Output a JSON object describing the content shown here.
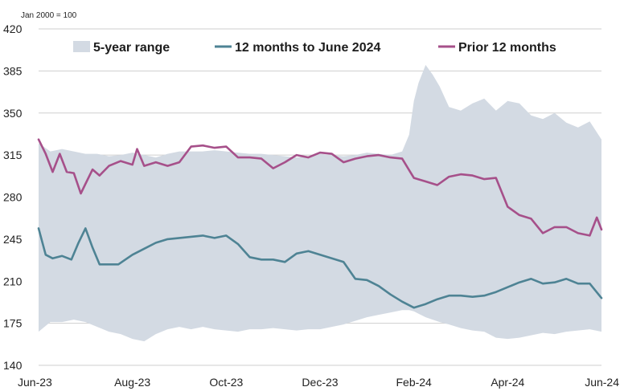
{
  "chart_data": {
    "type": "line",
    "unit_label": "Jan 2000 = 100",
    "ylim": [
      140,
      420
    ],
    "yticks": [
      140,
      175,
      210,
      245,
      280,
      315,
      350,
      385,
      420
    ],
    "xlim": [
      0,
      12
    ],
    "xticks": [
      {
        "x": 0,
        "label": "Jun-23"
      },
      {
        "x": 2,
        "label": "Aug-23"
      },
      {
        "x": 4,
        "label": "Oct-23"
      },
      {
        "x": 6,
        "label": "Dec-23"
      },
      {
        "x": 8,
        "label": "Feb-24"
      },
      {
        "x": 10,
        "label": "Apr-24"
      },
      {
        "x": 12,
        "label": "Jun-24"
      }
    ],
    "grid": "horizontal",
    "legend_position": "top",
    "band": {
      "name": "5-year range",
      "color": "#d3dae3",
      "x": [
        0.0,
        0.25,
        0.5,
        0.75,
        1.0,
        1.25,
        1.5,
        1.75,
        2.0,
        2.25,
        2.5,
        2.75,
        3.0,
        3.25,
        3.5,
        3.75,
        4.0,
        4.25,
        4.5,
        4.75,
        5.0,
        5.25,
        5.5,
        5.75,
        6.0,
        6.25,
        6.5,
        6.75,
        7.0,
        7.25,
        7.5,
        7.75,
        7.9,
        8.0,
        8.1,
        8.25,
        8.4,
        8.55,
        8.75,
        9.0,
        9.25,
        9.5,
        9.75,
        10.0,
        10.25,
        10.5,
        10.75,
        11.0,
        11.25,
        11.5,
        11.75,
        12.0
      ],
      "upper": [
        325,
        318,
        320,
        318,
        316,
        316,
        314,
        315,
        317,
        315,
        313,
        316,
        318,
        318,
        318,
        319,
        318,
        317,
        316,
        316,
        315,
        314,
        313,
        314,
        316,
        315,
        314,
        315,
        317,
        316,
        315,
        318,
        332,
        360,
        375,
        390,
        382,
        372,
        355,
        352,
        358,
        362,
        352,
        360,
        358,
        348,
        345,
        350,
        342,
        338,
        343,
        328
      ],
      "lower": [
        168,
        176,
        176,
        178,
        176,
        172,
        168,
        166,
        162,
        160,
        166,
        170,
        172,
        170,
        172,
        170,
        169,
        168,
        170,
        170,
        171,
        170,
        169,
        170,
        170,
        172,
        174,
        177,
        180,
        182,
        184,
        186,
        186,
        185,
        183,
        180,
        178,
        176,
        174,
        171,
        169,
        168,
        163,
        162,
        163,
        165,
        167,
        166,
        168,
        169,
        170,
        168
      ]
    },
    "series": [
      {
        "name": "12 months to June 2024",
        "color": "#4e8394",
        "x": [
          0.0,
          0.15,
          0.3,
          0.5,
          0.7,
          0.85,
          1.0,
          1.15,
          1.3,
          1.5,
          1.7,
          1.85,
          2.0,
          2.25,
          2.5,
          2.75,
          3.0,
          3.25,
          3.5,
          3.75,
          4.0,
          4.25,
          4.5,
          4.75,
          5.0,
          5.25,
          5.5,
          5.75,
          6.0,
          6.25,
          6.5,
          6.75,
          7.0,
          7.25,
          7.5,
          7.75,
          8.0,
          8.25,
          8.5,
          8.75,
          9.0,
          9.25,
          9.5,
          9.75,
          10.0,
          10.25,
          10.5,
          10.75,
          11.0,
          11.25,
          11.5,
          11.75,
          12.0
        ],
        "values": [
          254,
          232,
          229,
          231,
          228,
          242,
          254,
          238,
          224,
          224,
          224,
          228,
          232,
          237,
          242,
          245,
          246,
          247,
          248,
          246,
          248,
          241,
          230,
          228,
          228,
          226,
          233,
          235,
          232,
          229,
          226,
          212,
          211,
          206,
          199,
          193,
          188,
          191,
          195,
          198,
          198,
          197,
          198,
          201,
          205,
          209,
          212,
          208,
          209,
          212,
          208,
          208,
          196
        ]
      },
      {
        "name": "Prior 12 months",
        "color": "#a6508a",
        "x": [
          0.0,
          0.15,
          0.3,
          0.45,
          0.6,
          0.75,
          0.9,
          1.0,
          1.15,
          1.3,
          1.5,
          1.75,
          2.0,
          2.1,
          2.25,
          2.5,
          2.75,
          3.0,
          3.25,
          3.5,
          3.75,
          4.0,
          4.25,
          4.5,
          4.75,
          5.0,
          5.25,
          5.5,
          5.75,
          6.0,
          6.25,
          6.5,
          6.75,
          7.0,
          7.25,
          7.5,
          7.75,
          8.0,
          8.25,
          8.5,
          8.75,
          9.0,
          9.25,
          9.5,
          9.75,
          10.0,
          10.25,
          10.5,
          10.75,
          11.0,
          11.25,
          11.5,
          11.75,
          11.9,
          12.0
        ],
        "values": [
          328,
          316,
          301,
          316,
          301,
          300,
          283,
          291,
          303,
          298,
          306,
          310,
          307,
          320,
          306,
          309,
          306,
          309,
          322,
          323,
          321,
          322,
          313,
          313,
          312,
          304,
          309,
          315,
          313,
          317,
          316,
          309,
          312,
          314,
          315,
          313,
          312,
          296,
          293,
          290,
          297,
          299,
          298,
          295,
          296,
          272,
          265,
          262,
          250,
          255,
          255,
          250,
          248,
          263,
          253
        ]
      }
    ]
  }
}
